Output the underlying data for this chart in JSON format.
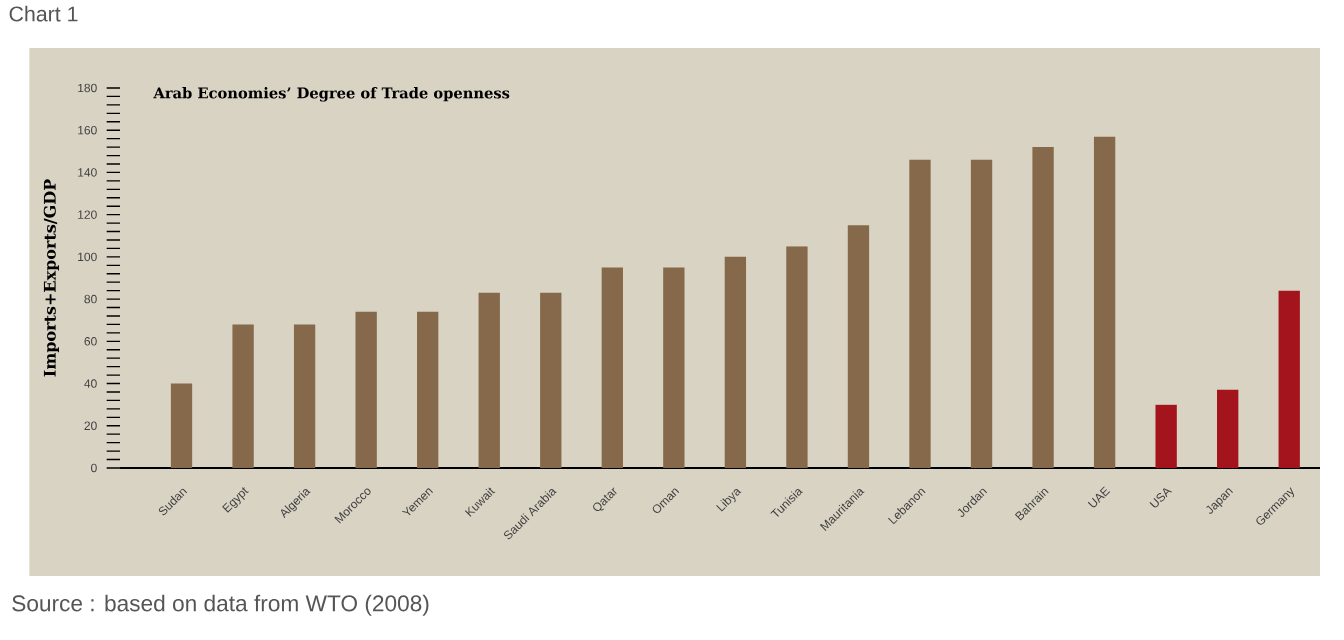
{
  "chart_data": {
    "type": "bar",
    "title": "Chart 1",
    "subtitle": "Arab Economies’ Degree of Trade openness",
    "ylabel": "Imports+Exports/GDP",
    "annotations": [
      "Source : based on data from WTO (2008)"
    ],
    "categories": [
      "Sudan",
      "Egypt",
      "Algeria",
      "Morocco",
      "Yemen",
      "Kuwait",
      "Saudi Arabia",
      "Qatar",
      "Oman",
      "Libya",
      "Tunisia",
      "Mauritania",
      "Lebanon",
      "Jordan",
      "Bahrain",
      "UAE",
      "USA",
      "Japan",
      "Germany"
    ],
    "values": [
      40,
      68,
      68,
      74,
      74,
      83,
      83,
      95,
      95,
      100,
      105,
      115,
      146,
      146,
      152,
      157,
      30,
      37,
      84
    ],
    "colors": [
      "#86694a",
      "#86694a",
      "#86694a",
      "#86694a",
      "#86694a",
      "#86694a",
      "#86694a",
      "#86694a",
      "#86694a",
      "#86694a",
      "#86694a",
      "#86694a",
      "#86694a",
      "#86694a",
      "#86694a",
      "#86694a",
      "#a3141c",
      "#a3141c",
      "#a3141c"
    ],
    "ylim": [
      0,
      180
    ],
    "yticks": [
      0,
      20,
      40,
      60,
      80,
      100,
      120,
      140,
      160,
      180
    ],
    "grid": false
  }
}
